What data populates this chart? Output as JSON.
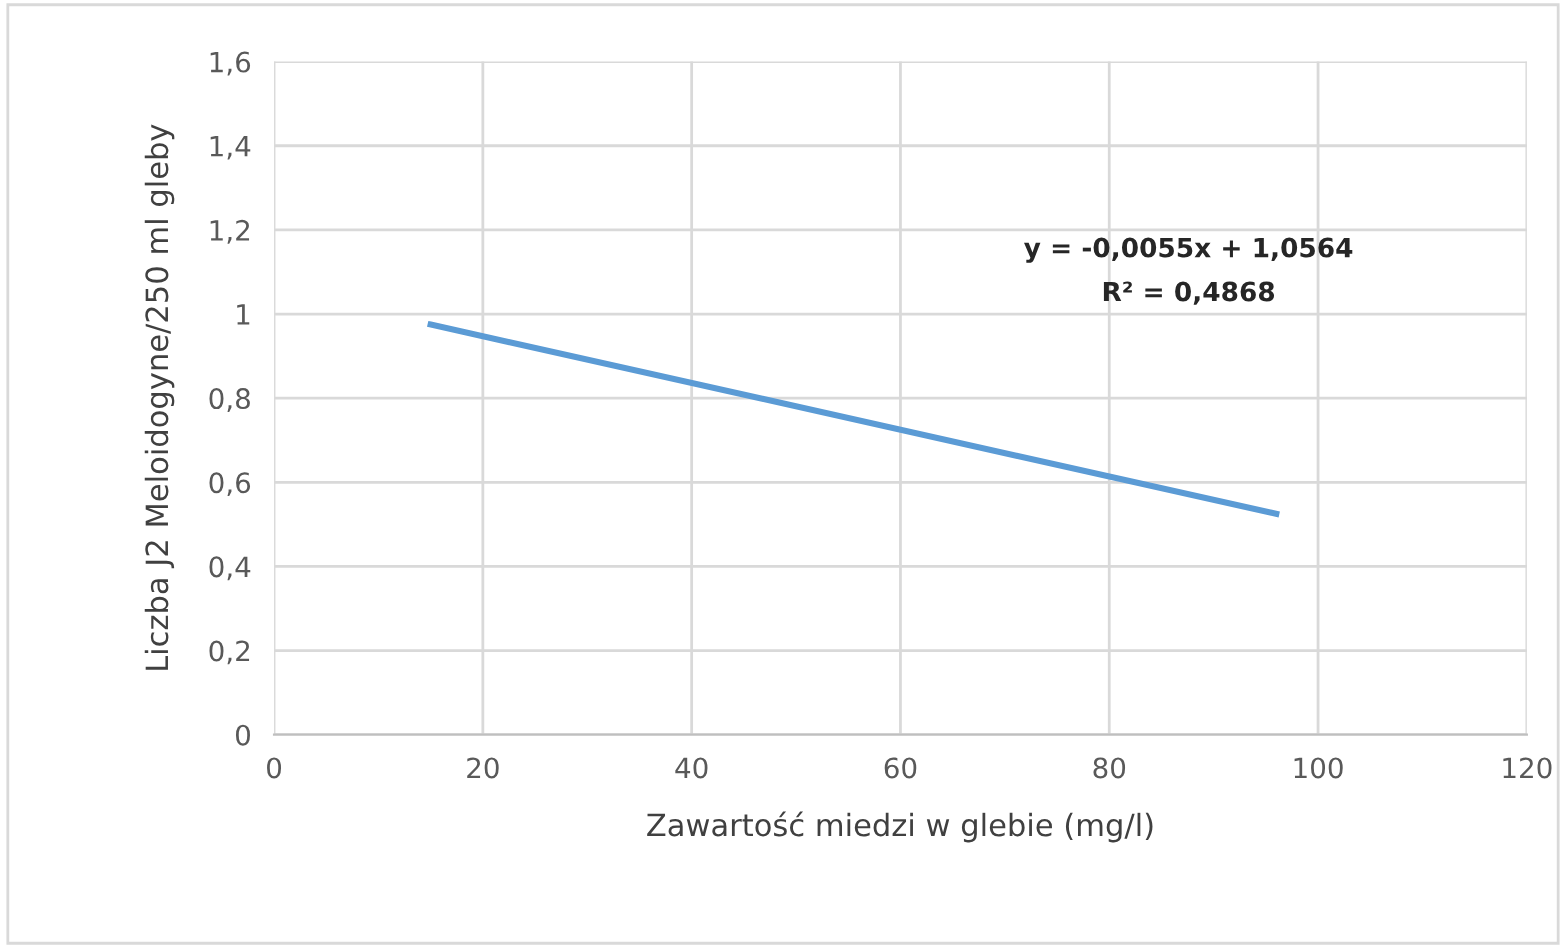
{
  "chart_data": {
    "type": "line",
    "xlabel": "Zawartość miedzi w glebie (mg/l)",
    "ylabel": "Liczba J2 Meloidogyne/250 ml gleby",
    "series": [
      {
        "color": "#5b9bd5",
        "x": [
          15,
          96
        ],
        "values": [
          0.975,
          0.525
        ]
      }
    ],
    "xlim": [
      0,
      120
    ],
    "xticks": [
      0,
      20,
      40,
      60,
      80,
      100,
      120
    ],
    "ylim": [
      0,
      1.6
    ],
    "yticks": [
      0,
      {
        "value": 0.2,
        "label": "0,2"
      },
      {
        "value": 0.4,
        "label": "0,4"
      },
      {
        "value": 0.6,
        "label": "0,6"
      },
      {
        "value": 0.8,
        "label": "0,8"
      },
      1,
      {
        "value": 1.2,
        "label": "1,2"
      },
      {
        "value": 1.4,
        "label": "1,4"
      },
      {
        "value": 1.6,
        "label": "1,6"
      }
    ],
    "grid": true,
    "marker": "none",
    "line_style": "solid",
    "annotations": [
      "y = -0,0055x + 1,0564",
      "R² = 0,4868"
    ]
  }
}
